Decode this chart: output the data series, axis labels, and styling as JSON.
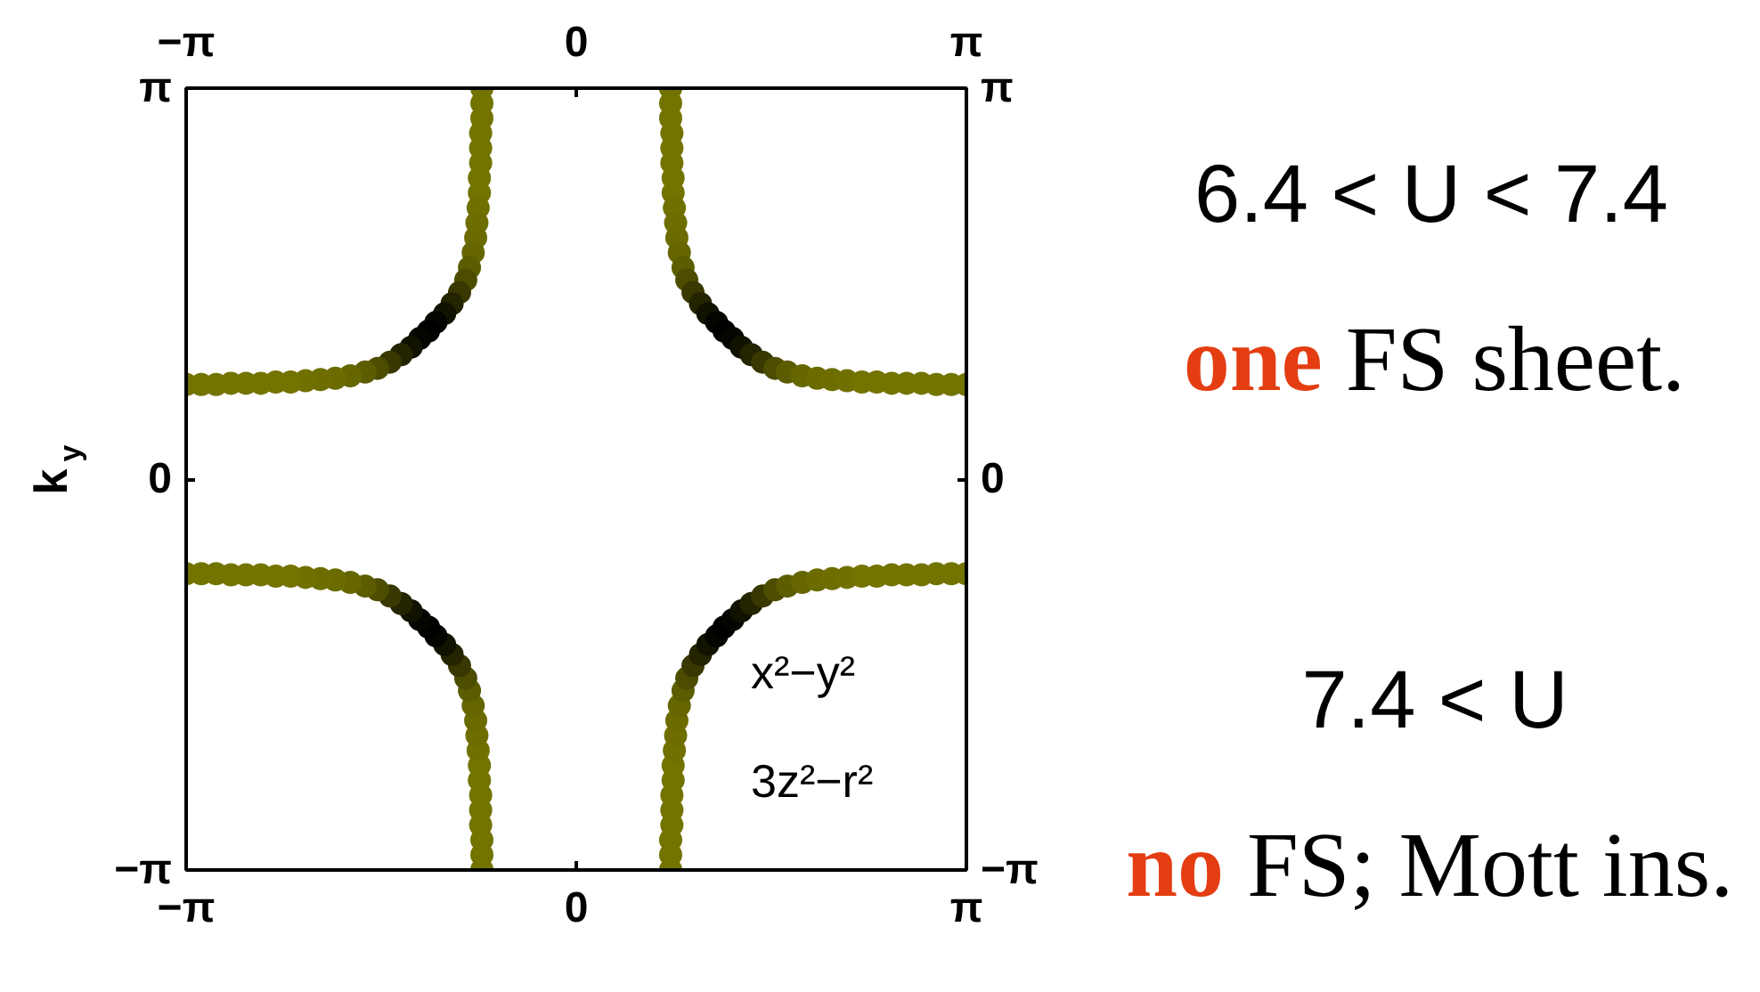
{
  "chart_data": {
    "type": "scatter",
    "ylabel": "k$_{y}$",
    "xlim": [
      -3.1416,
      3.1416
    ],
    "xticks": [
      {
        "value": -3.1416,
        "label": "−π"
      },
      0,
      {
        "value": 3.1416,
        "label": "π"
      }
    ],
    "x2lim": [
      -3.1416,
      3.1416
    ],
    "x2ticks": [
      {
        "value": -3.1416,
        "label": "−π"
      },
      0,
      {
        "value": 3.1416,
        "label": "π"
      }
    ],
    "ylim": [
      -3.1416,
      3.1416
    ],
    "yticks": [
      {
        "value": -3.1416,
        "label": "−π"
      },
      0,
      {
        "value": 3.1416,
        "label": "π"
      }
    ],
    "y2lim": [
      -3.1416,
      3.1416
    ],
    "y2ticks": [
      {
        "value": -3.1416,
        "label": "−π"
      },
      0,
      {
        "value": 3.1416,
        "label": "π"
      }
    ],
    "marker": "circle",
    "annotations": [
      "6.4 < U < 7.4",
      "one FS sheet.",
      "7.4 < U",
      "no FS; Mott ins.",
      "x²−y²",
      "3z²−r²"
    ],
    "series": [
      {
        "x": [
          -0.76,
          -0.76,
          -0.76,
          -0.77,
          -0.77,
          -0.77,
          -0.78,
          -0.78,
          -0.79,
          -0.8,
          -0.81,
          -0.83,
          -0.86,
          -0.89,
          -0.94,
          -1.0,
          -1.06,
          -1.13,
          -1.19,
          -1.26,
          -1.33,
          -1.41,
          -1.5,
          -1.6,
          -1.7,
          -1.82,
          -1.94,
          -2.06,
          -2.18,
          -2.3,
          -2.42,
          -2.54,
          -2.66,
          -2.78,
          -2.9,
          -3.02,
          -3.14
        ],
        "values": [
          3.14,
          3.02,
          2.9,
          2.78,
          2.66,
          2.54,
          2.42,
          2.3,
          2.18,
          2.06,
          1.94,
          1.82,
          1.7,
          1.6,
          1.5,
          1.41,
          1.33,
          1.26,
          1.19,
          1.13,
          1.06,
          1.0,
          0.94,
          0.89,
          0.86,
          0.83,
          0.81,
          0.8,
          0.79,
          0.78,
          0.78,
          0.77,
          0.77,
          0.77,
          0.76,
          0.76,
          0.76
        ],
        "colors": [
          "#737300",
          "#737300",
          "#737300",
          "#737300",
          "#737300",
          "#737300",
          "#737300",
          "#737300",
          "#707000",
          "#6e6e00",
          "#6b6b00",
          "#666600",
          "#5c5c00",
          "#4d4d00",
          "#383800",
          "#242400",
          "#121200",
          "#050500",
          "#000000",
          "#050500",
          "#121200",
          "#242400",
          "#383800",
          "#4d4d00",
          "#5c5c00",
          "#666600",
          "#6b6b00",
          "#6e6e00",
          "#707000",
          "#737300",
          "#737300",
          "#737300",
          "#737300",
          "#737300",
          "#737300",
          "#737300",
          "#737300"
        ]
      },
      {
        "x": [
          0.76,
          0.76,
          0.76,
          0.77,
          0.77,
          0.77,
          0.78,
          0.78,
          0.79,
          0.8,
          0.81,
          0.83,
          0.86,
          0.89,
          0.94,
          1.0,
          1.06,
          1.13,
          1.19,
          1.26,
          1.33,
          1.41,
          1.5,
          1.6,
          1.7,
          1.82,
          1.94,
          2.06,
          2.18,
          2.3,
          2.42,
          2.54,
          2.66,
          2.78,
          2.9,
          3.02,
          3.14
        ],
        "values": [
          3.14,
          3.02,
          2.9,
          2.78,
          2.66,
          2.54,
          2.42,
          2.3,
          2.18,
          2.06,
          1.94,
          1.82,
          1.7,
          1.6,
          1.5,
          1.41,
          1.33,
          1.26,
          1.19,
          1.13,
          1.06,
          1.0,
          0.94,
          0.89,
          0.86,
          0.83,
          0.81,
          0.8,
          0.79,
          0.78,
          0.78,
          0.77,
          0.77,
          0.77,
          0.76,
          0.76,
          0.76
        ],
        "colors": [
          "#737300",
          "#737300",
          "#737300",
          "#737300",
          "#737300",
          "#737300",
          "#737300",
          "#737300",
          "#707000",
          "#6e6e00",
          "#6b6b00",
          "#666600",
          "#5c5c00",
          "#4d4d00",
          "#383800",
          "#242400",
          "#121200",
          "#050500",
          "#000000",
          "#050500",
          "#121200",
          "#242400",
          "#383800",
          "#4d4d00",
          "#5c5c00",
          "#666600",
          "#6b6b00",
          "#6e6e00",
          "#707000",
          "#737300",
          "#737300",
          "#737300",
          "#737300",
          "#737300",
          "#737300",
          "#737300",
          "#737300"
        ]
      },
      {
        "x": [
          -0.76,
          -0.76,
          -0.76,
          -0.77,
          -0.77,
          -0.77,
          -0.78,
          -0.78,
          -0.79,
          -0.8,
          -0.81,
          -0.83,
          -0.86,
          -0.89,
          -0.94,
          -1.0,
          -1.06,
          -1.13,
          -1.19,
          -1.26,
          -1.33,
          -1.41,
          -1.5,
          -1.6,
          -1.7,
          -1.82,
          -1.94,
          -2.06,
          -2.18,
          -2.3,
          -2.42,
          -2.54,
          -2.66,
          -2.78,
          -2.9,
          -3.02,
          -3.14
        ],
        "values": [
          -3.14,
          -3.02,
          -2.9,
          -2.78,
          -2.66,
          -2.54,
          -2.42,
          -2.3,
          -2.18,
          -2.06,
          -1.94,
          -1.82,
          -1.7,
          -1.6,
          -1.5,
          -1.41,
          -1.33,
          -1.26,
          -1.19,
          -1.13,
          -1.06,
          -1.0,
          -0.94,
          -0.89,
          -0.86,
          -0.83,
          -0.81,
          -0.8,
          -0.79,
          -0.78,
          -0.78,
          -0.77,
          -0.77,
          -0.77,
          -0.76,
          -0.76,
          -0.76
        ],
        "colors": [
          "#737300",
          "#737300",
          "#737300",
          "#737300",
          "#737300",
          "#737300",
          "#737300",
          "#737300",
          "#707000",
          "#6e6e00",
          "#6b6b00",
          "#666600",
          "#5c5c00",
          "#4d4d00",
          "#383800",
          "#242400",
          "#121200",
          "#050500",
          "#000000",
          "#050500",
          "#121200",
          "#242400",
          "#383800",
          "#4d4d00",
          "#5c5c00",
          "#666600",
          "#6b6b00",
          "#6e6e00",
          "#707000",
          "#737300",
          "#737300",
          "#737300",
          "#737300",
          "#737300",
          "#737300",
          "#737300",
          "#737300"
        ]
      },
      {
        "x": [
          0.76,
          0.76,
          0.76,
          0.77,
          0.77,
          0.77,
          0.78,
          0.78,
          0.79,
          0.8,
          0.81,
          0.83,
          0.86,
          0.89,
          0.94,
          1.0,
          1.06,
          1.13,
          1.19,
          1.26,
          1.33,
          1.41,
          1.5,
          1.6,
          1.7,
          1.82,
          1.94,
          2.06,
          2.18,
          2.3,
          2.42,
          2.54,
          2.66,
          2.78,
          2.9,
          3.02,
          3.14
        ],
        "values": [
          -3.14,
          -3.02,
          -2.9,
          -2.78,
          -2.66,
          -2.54,
          -2.42,
          -2.3,
          -2.18,
          -2.06,
          -1.94,
          -1.82,
          -1.7,
          -1.6,
          -1.5,
          -1.41,
          -1.33,
          -1.26,
          -1.19,
          -1.13,
          -1.06,
          -1.0,
          -0.94,
          -0.89,
          -0.86,
          -0.83,
          -0.81,
          -0.8,
          -0.79,
          -0.78,
          -0.78,
          -0.77,
          -0.77,
          -0.77,
          -0.76,
          -0.76,
          -0.76
        ],
        "colors": [
          "#737300",
          "#737300",
          "#737300",
          "#737300",
          "#737300",
          "#737300",
          "#737300",
          "#737300",
          "#707000",
          "#6e6e00",
          "#6b6b00",
          "#666600",
          "#5c5c00",
          "#4d4d00",
          "#383800",
          "#242400",
          "#121200",
          "#050500",
          "#000000",
          "#050500",
          "#121200",
          "#242400",
          "#383800",
          "#4d4d00",
          "#5c5c00",
          "#666600",
          "#6b6b00",
          "#6e6e00",
          "#707000",
          "#737300",
          "#737300",
          "#737300",
          "#737300",
          "#737300",
          "#737300",
          "#737300",
          "#737300"
        ]
      }
    ]
  }
}
